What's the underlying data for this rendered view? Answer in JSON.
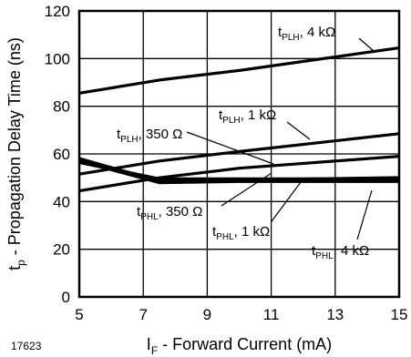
{
  "figure_number": "17623",
  "chart_data": {
    "type": "line",
    "xlabel": {
      "main": "I",
      "sub": "F",
      "rest": " - Forward Current (mA)"
    },
    "ylabel": {
      "main": "t",
      "sub": "p",
      "rest": " - Propagation Delay Time (ns)"
    },
    "xlim": [
      5,
      15
    ],
    "ylim": [
      0,
      120
    ],
    "xticks": [
      5,
      7,
      9,
      11,
      13,
      15
    ],
    "yticks": [
      0,
      20,
      40,
      60,
      80,
      100,
      120
    ],
    "grid": true,
    "series": [
      {
        "name": "tPLH, 4 kΩ",
        "x": [
          5,
          7.5,
          10,
          15
        ],
        "y": [
          85.5,
          91,
          95,
          104.5
        ]
      },
      {
        "name": "tPLH, 1 kΩ",
        "x": [
          5,
          7.5,
          10,
          15
        ],
        "y": [
          51.5,
          57,
          61,
          68.5
        ]
      },
      {
        "name": "tPLH, 350 Ω",
        "x": [
          5,
          7.5,
          10,
          15
        ],
        "y": [
          44.5,
          50,
          54,
          59
        ]
      },
      {
        "name": "tPHL, 350 Ω",
        "x": [
          5,
          7.5,
          10,
          15
        ],
        "y": [
          58,
          48.5,
          49,
          50
        ]
      },
      {
        "name": "tPHL, 1 kΩ",
        "x": [
          5,
          7.5,
          10,
          15
        ],
        "y": [
          56.5,
          49.5,
          49.5,
          49.5
        ]
      },
      {
        "name": "tPHL, 4 kΩ",
        "x": [
          5,
          7.5,
          10,
          15
        ],
        "y": [
          57,
          48,
          48.5,
          48.5
        ]
      }
    ],
    "annotations": [
      {
        "main": "t",
        "sub": "PLH",
        "rest": ", 4 kΩ"
      },
      {
        "main": "t",
        "sub": "PLH",
        "rest": ", 1 kΩ"
      },
      {
        "main": "t",
        "sub": "PLH",
        "rest": ", 350 Ω"
      },
      {
        "main": "t",
        "sub": "PHL",
        "rest": ", 350 Ω"
      },
      {
        "main": "t",
        "sub": "PHL",
        "rest": ", 1 kΩ"
      },
      {
        "main": "t",
        "sub": "PHL",
        "rest": ", 4 kΩ"
      }
    ]
  }
}
